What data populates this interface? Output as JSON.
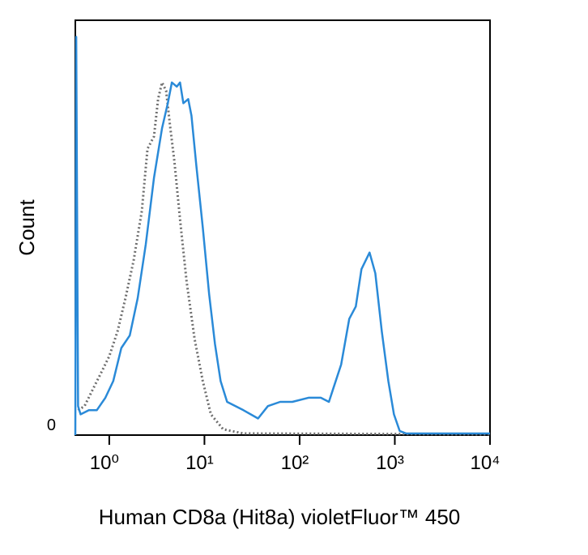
{
  "chart_data": {
    "type": "line",
    "xscale": "log",
    "xlabel": "Human CD8a (Hit8a) violetFluor™ 450",
    "ylabel": "Count",
    "xlim": [
      0.44,
      10000
    ],
    "ylim": [
      0,
      100
    ],
    "xticks": [
      {
        "value": 1,
        "label": "10⁰"
      },
      {
        "value": 10,
        "label": "10¹"
      },
      {
        "value": 100,
        "label": "10²"
      },
      {
        "value": 1000,
        "label": "10³"
      },
      {
        "value": 10000,
        "label": "10⁴"
      }
    ],
    "yticks": [
      0
    ],
    "series": [
      {
        "color": "#2a8ad8",
        "style": "solid",
        "x": [
          0.44,
          0.45,
          0.47,
          0.5,
          0.61,
          0.74,
          0.91,
          1.1,
          1.34,
          1.64,
          1.99,
          2.42,
          2.95,
          3.59,
          4.12,
          4.55,
          5.12,
          5.54,
          6.0,
          6.75,
          7.3,
          8.22,
          9.61,
          11.2,
          12.9,
          14.8,
          17.3,
          25.7,
          36.6,
          46.4,
          62.4,
          83.8,
          124,
          167,
          203,
          224,
          273,
          332,
          389,
          446,
          543,
          624,
          730,
          855,
          980,
          1125,
          1318,
          10000
        ],
        "values": [
          0,
          96,
          7,
          5,
          6,
          6,
          9,
          13,
          21,
          24,
          33,
          46,
          62,
          74,
          80,
          85,
          84,
          85,
          80,
          81,
          77,
          65,
          50,
          34,
          22,
          13,
          8,
          6,
          4,
          7,
          8,
          8,
          9,
          9,
          8,
          11,
          17,
          28,
          31,
          40,
          44,
          39,
          25,
          13,
          5,
          1,
          0.4,
          0.4
        ]
      },
      {
        "color": "#6e6e6e",
        "style": "dotted",
        "x": [
          0.47,
          0.55,
          0.67,
          0.82,
          1.0,
          1.22,
          1.48,
          1.8,
          2.2,
          2.52,
          2.95,
          3.26,
          3.59,
          3.96,
          4.38,
          4.83,
          5.54,
          6.49,
          7.9,
          9.61,
          11.7,
          15.7,
          25.7,
          10000
        ],
        "values": [
          6,
          7,
          11,
          15,
          19,
          25,
          33,
          42,
          54,
          69,
          72,
          81,
          85,
          83,
          74,
          66,
          52,
          37,
          23,
          13,
          5,
          1.4,
          0.4,
          0.2
        ]
      }
    ]
  }
}
